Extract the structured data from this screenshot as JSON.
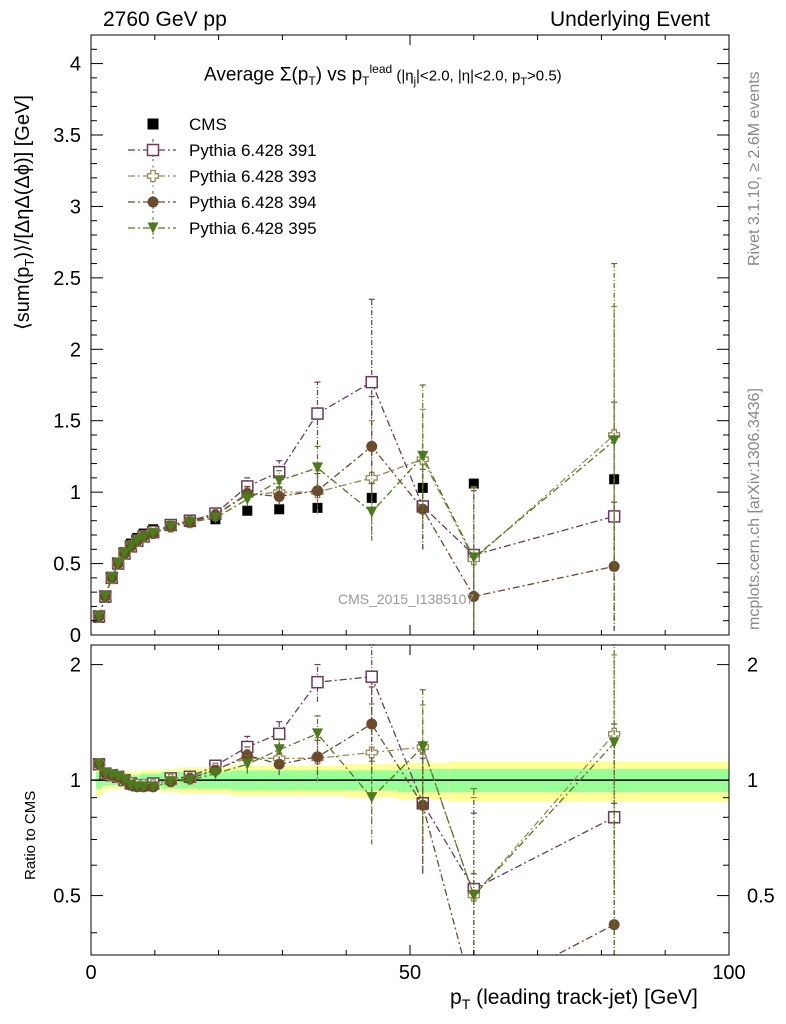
{
  "header": {
    "left": "2760 GeV pp",
    "right": "Underlying Event"
  },
  "side_labels": {
    "rivet": "Rivet 3.1.10, ≥ 2.6M events",
    "source": "mcplots.cern.ch [arXiv:1306.3436]"
  },
  "watermark": "CMS_2015_I1385107",
  "chart_data": [
    {
      "type": "scatter",
      "panel": "main",
      "title": "Average Σ(p_T) vs p_T^lead (|η_j|<2.0, |η|<2.0, p_T>0.5)",
      "title_parts": {
        "a": "Average ",
        "b": "Σ(p",
        "c": "T",
        "d": ") vs p",
        "e": "T",
        "f": "lead",
        "g": " (|η",
        "h": "j",
        "i": "|<2.0, |η|<2.0, p",
        "j": "T",
        "k": ">0.5)"
      },
      "ylabel": "⟨sum(p_T)⟩/[ΔηΔ(Δϕ)] [GeV]",
      "ylabel_parts": {
        "a": "⟨sum(p",
        "b": "T",
        "c": ")⟩/[ΔηΔ(Δϕ)] [GeV]"
      },
      "xlim": [
        0,
        100
      ],
      "ylim": [
        0,
        4.2
      ],
      "yticks": [
        "0",
        "0.5",
        "1",
        "1.5",
        "2",
        "2.5",
        "3",
        "3.5",
        "4"
      ],
      "legend_position": "top-left",
      "series": [
        {
          "name": "CMS",
          "color": "#000000",
          "marker": "filled-square",
          "x": [
            1.25,
            2.25,
            3.25,
            4.25,
            5.25,
            6.25,
            7.25,
            8.25,
            9.75,
            12.5,
            15.5,
            19.5,
            24.5,
            29.5,
            35.5,
            44,
            52,
            60,
            82
          ],
          "y": [
            0.12,
            0.26,
            0.4,
            0.5,
            0.58,
            0.64,
            0.68,
            0.71,
            0.74,
            0.77,
            0.79,
            0.81,
            0.87,
            0.88,
            0.89,
            0.96,
            1.03,
            1.06,
            1.09
          ]
        },
        {
          "name": "Pythia 6.428 391",
          "color": "#6b3a5d",
          "marker": "open-square",
          "x": [
            1.25,
            2.25,
            3.25,
            4.25,
            5.25,
            6.25,
            7.25,
            8.25,
            9.75,
            12.5,
            15.5,
            19.5,
            24.5,
            29.5,
            35.5,
            44,
            52,
            60,
            82
          ],
          "y": [
            0.13,
            0.27,
            0.4,
            0.5,
            0.57,
            0.62,
            0.66,
            0.69,
            0.72,
            0.77,
            0.8,
            0.85,
            1.04,
            1.14,
            1.55,
            1.77,
            0.9,
            0.56,
            0.83
          ],
          "err": [
            0.01,
            0.01,
            0.01,
            0.01,
            0.01,
            0.01,
            0.01,
            0.01,
            0.01,
            0.01,
            0.02,
            0.02,
            0.06,
            0.08,
            0.22,
            0.58,
            0.3,
            0.45,
            0.8
          ]
        },
        {
          "name": "Pythia 6.428 393",
          "color": "#9a8a5a",
          "marker": "open-plus",
          "x": [
            1.25,
            2.25,
            3.25,
            4.25,
            5.25,
            6.25,
            7.25,
            8.25,
            9.75,
            12.5,
            15.5,
            19.5,
            24.5,
            29.5,
            35.5,
            44,
            52,
            60,
            82
          ],
          "y": [
            0.13,
            0.27,
            0.4,
            0.5,
            0.57,
            0.62,
            0.66,
            0.69,
            0.72,
            0.76,
            0.79,
            0.84,
            0.98,
            1.0,
            1.0,
            1.1,
            1.23,
            0.53,
            1.4
          ],
          "err": [
            0.01,
            0.01,
            0.01,
            0.01,
            0.01,
            0.01,
            0.01,
            0.01,
            0.01,
            0.01,
            0.02,
            0.02,
            0.05,
            0.06,
            0.15,
            0.4,
            0.35,
            0.5,
            0.9
          ]
        },
        {
          "name": "Pythia 6.428 394",
          "color": "#6b4a2e",
          "marker": "filled-circle",
          "x": [
            1.25,
            2.25,
            3.25,
            4.25,
            5.25,
            6.25,
            7.25,
            8.25,
            9.75,
            12.5,
            15.5,
            19.5,
            24.5,
            29.5,
            35.5,
            44,
            52,
            60,
            82
          ],
          "y": [
            0.13,
            0.27,
            0.4,
            0.5,
            0.57,
            0.62,
            0.66,
            0.69,
            0.71,
            0.76,
            0.79,
            0.84,
            0.99,
            0.97,
            1.01,
            1.32,
            0.88,
            0.27,
            0.48
          ],
          "err": [
            0.01,
            0.01,
            0.01,
            0.01,
            0.01,
            0.01,
            0.01,
            0.01,
            0.01,
            0.01,
            0.02,
            0.02,
            0.05,
            0.06,
            0.12,
            0.35,
            0.28,
            0.3,
            0.45
          ]
        },
        {
          "name": "Pythia 6.428 395",
          "color": "#4e7a1e",
          "marker": "filled-triangle-down",
          "x": [
            1.25,
            2.25,
            3.25,
            4.25,
            5.25,
            6.25,
            7.25,
            8.25,
            9.75,
            12.5,
            15.5,
            19.5,
            24.5,
            29.5,
            35.5,
            44,
            52,
            60,
            82
          ],
          "y": [
            0.13,
            0.27,
            0.4,
            0.5,
            0.57,
            0.62,
            0.66,
            0.68,
            0.71,
            0.76,
            0.79,
            0.82,
            0.95,
            1.08,
            1.17,
            0.86,
            1.25,
            0.54,
            1.36
          ],
          "err": [
            0.01,
            0.01,
            0.01,
            0.01,
            0.01,
            0.01,
            0.01,
            0.01,
            0.01,
            0.01,
            0.02,
            0.02,
            0.05,
            0.07,
            0.15,
            0.2,
            0.5,
            0.5,
            1.24
          ]
        }
      ]
    },
    {
      "type": "scatter",
      "panel": "ratio",
      "ylabel": "Ratio to CMS",
      "xlabel": "p_T (leading track-jet) [GeV]",
      "xlabel_parts": {
        "a": "p",
        "b": "T",
        "c": " (leading track-jet) [GeV]"
      },
      "xlim": [
        0,
        100
      ],
      "ylim": [
        0.35,
        2.25
      ],
      "xticks": [
        "0",
        "50",
        "100"
      ],
      "yticks_left": [
        "0.5",
        "1",
        "2"
      ],
      "yticks_right": [
        "0.5",
        "1",
        "2"
      ],
      "bands": {
        "outer_color": "#ffff99",
        "inner_color": "#99ff99",
        "x": [
          1.25,
          2.25,
          3.25,
          4.25,
          5.25,
          6.25,
          7.25,
          8.25,
          9.75,
          12.5,
          15.5,
          19.5,
          24.5,
          29.5,
          35.5,
          44,
          52,
          60,
          82
        ],
        "outer": [
          0.09,
          0.06,
          0.05,
          0.05,
          0.05,
          0.05,
          0.05,
          0.06,
          0.06,
          0.07,
          0.08,
          0.08,
          0.09,
          0.09,
          0.09,
          0.1,
          0.11,
          0.12,
          0.12
        ],
        "inner": [
          0.05,
          0.03,
          0.03,
          0.03,
          0.03,
          0.03,
          0.03,
          0.04,
          0.04,
          0.05,
          0.05,
          0.05,
          0.06,
          0.06,
          0.06,
          0.06,
          0.07,
          0.07,
          0.07
        ]
      },
      "series": [
        {
          "name": "Pythia 6.428 391",
          "color": "#6b3a5d",
          "marker": "open-square",
          "x": [
            1.25,
            2.25,
            3.25,
            4.25,
            5.25,
            6.25,
            7.25,
            8.25,
            9.75,
            12.5,
            15.5,
            19.5,
            24.5,
            29.5,
            35.5,
            44,
            52,
            60,
            82
          ],
          "y": [
            1.1,
            1.04,
            1.03,
            1.02,
            1.0,
            0.98,
            0.97,
            0.97,
            0.98,
            1.01,
            1.02,
            1.09,
            1.22,
            1.32,
            1.8,
            1.86,
            0.87,
            0.52,
            0.8
          ],
          "err": [
            0.03,
            0.02,
            0.02,
            0.02,
            0.02,
            0.02,
            0.02,
            0.02,
            0.02,
            0.02,
            0.02,
            0.03,
            0.08,
            0.1,
            0.2,
            0.55,
            0.3,
            0.3,
            0.6
          ]
        },
        {
          "name": "Pythia 6.428 393",
          "color": "#9a8a5a",
          "marker": "open-plus",
          "x": [
            1.25,
            2.25,
            3.25,
            4.25,
            5.25,
            6.25,
            7.25,
            8.25,
            9.75,
            12.5,
            15.5,
            19.5,
            24.5,
            29.5,
            35.5,
            44,
            52,
            60,
            82
          ],
          "y": [
            1.1,
            1.04,
            1.03,
            1.02,
            1.0,
            0.98,
            0.97,
            0.97,
            0.97,
            1.0,
            1.01,
            1.07,
            1.14,
            1.14,
            1.14,
            1.18,
            1.22,
            0.5,
            1.32
          ],
          "err": [
            0.03,
            0.02,
            0.02,
            0.02,
            0.02,
            0.02,
            0.02,
            0.02,
            0.02,
            0.02,
            0.02,
            0.03,
            0.06,
            0.07,
            0.15,
            0.4,
            0.35,
            0.4,
            0.8
          ]
        },
        {
          "name": "Pythia 6.428 394",
          "color": "#6b4a2e",
          "marker": "filled-circle",
          "x": [
            1.25,
            2.25,
            3.25,
            4.25,
            5.25,
            6.25,
            7.25,
            8.25,
            9.75,
            12.5,
            15.5,
            19.5,
            24.5,
            29.5,
            35.5,
            44,
            52,
            60,
            82
          ],
          "y": [
            1.1,
            1.04,
            1.03,
            1.02,
            1.0,
            0.97,
            0.96,
            0.96,
            0.96,
            0.99,
            1.01,
            1.06,
            1.16,
            1.1,
            1.15,
            1.4,
            0.86,
            0.27,
            0.42
          ],
          "err": [
            0.03,
            0.02,
            0.02,
            0.02,
            0.02,
            0.02,
            0.02,
            0.02,
            0.02,
            0.02,
            0.02,
            0.03,
            0.06,
            0.07,
            0.12,
            0.35,
            0.28,
            0.3,
            0.45
          ]
        },
        {
          "name": "Pythia 6.428 395",
          "color": "#4e7a1e",
          "marker": "filled-triangle-down",
          "x": [
            1.25,
            2.25,
            3.25,
            4.25,
            5.25,
            6.25,
            7.25,
            8.25,
            9.75,
            12.5,
            15.5,
            19.5,
            24.5,
            29.5,
            35.5,
            44,
            52,
            60,
            82
          ],
          "y": [
            1.1,
            1.04,
            1.03,
            1.02,
            1.0,
            0.97,
            0.96,
            0.96,
            0.96,
            0.99,
            1.0,
            1.04,
            1.1,
            1.2,
            1.32,
            0.9,
            1.22,
            0.5,
            1.25
          ],
          "err": [
            0.03,
            0.02,
            0.02,
            0.02,
            0.02,
            0.02,
            0.02,
            0.02,
            0.02,
            0.02,
            0.02,
            0.03,
            0.06,
            0.08,
            0.15,
            0.22,
            0.5,
            0.45,
            1.0
          ]
        }
      ]
    }
  ]
}
